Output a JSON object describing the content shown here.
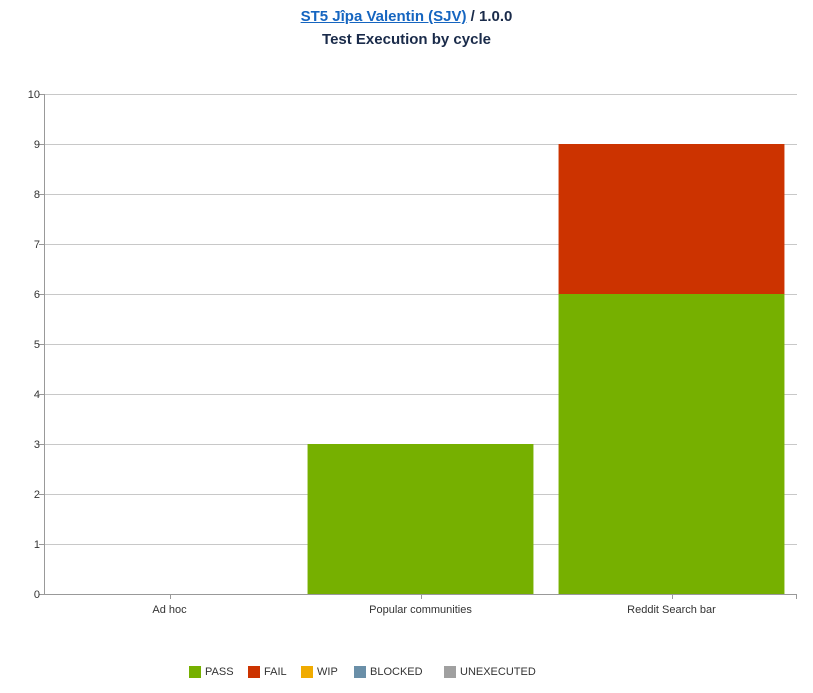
{
  "header": {
    "project_link": "ST5 Jîpa Valentin (SJV)",
    "separator": " / ",
    "version": "1.0.0",
    "subtitle": "Test Execution by cycle"
  },
  "chart_data": {
    "type": "bar",
    "stacked": true,
    "categories": [
      "Ad hoc",
      "Popular communities",
      "Reddit Search bar"
    ],
    "series": [
      {
        "name": "PASS",
        "values": [
          0,
          3,
          6
        ],
        "color": "#76b000"
      },
      {
        "name": "FAIL",
        "values": [
          0,
          0,
          3
        ],
        "color": "#cc3300"
      },
      {
        "name": "WIP",
        "values": [
          0,
          0,
          0
        ],
        "color": "#f0ab00"
      },
      {
        "name": "BLOCKED",
        "values": [
          0,
          0,
          0
        ],
        "color": "#6a8fa8"
      },
      {
        "name": "UNEXECUTED",
        "values": [
          0,
          0,
          0
        ],
        "color": "#a0a0a0"
      }
    ],
    "ylim": [
      0,
      10
    ],
    "yticks": [
      0,
      1,
      2,
      3,
      4,
      5,
      6,
      7,
      8,
      9,
      10
    ],
    "grid": true,
    "legend_position": "bottom"
  }
}
